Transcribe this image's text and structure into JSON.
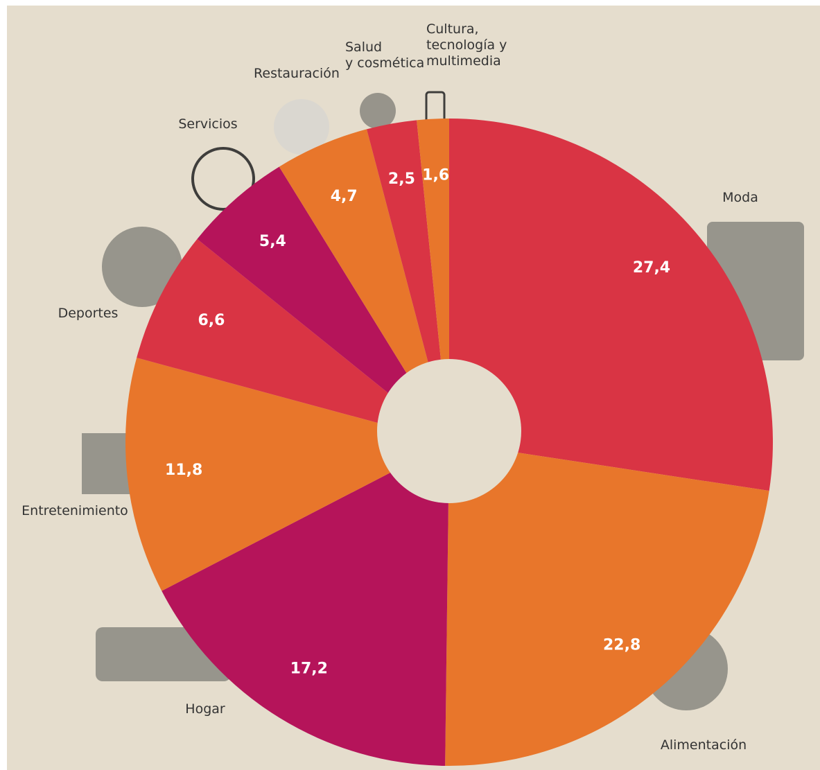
{
  "chart_data": {
    "type": "donut",
    "categories": [
      "Moda",
      "Alimentación",
      "Hogar",
      "Entretenimiento",
      "Deportes",
      "Servicios",
      "Restauración",
      "Salud\ny cosmética",
      "Cultura,\ntecnología y\nmultimedia"
    ],
    "values": [
      27.4,
      22.8,
      17.2,
      11.8,
      6.6,
      5.4,
      4.7,
      2.5,
      1.6
    ],
    "value_labels": [
      "27,4",
      "22,8",
      "17,2",
      "11,8",
      "6,6",
      "5,4",
      "4,7",
      "2,5",
      "1,6"
    ],
    "colors": [
      "#d93444",
      "#e8762b",
      "#b5145a",
      "#e8762b",
      "#d93444",
      "#b5145a",
      "#e8762b",
      "#d93444",
      "#e8762b"
    ]
  }
}
